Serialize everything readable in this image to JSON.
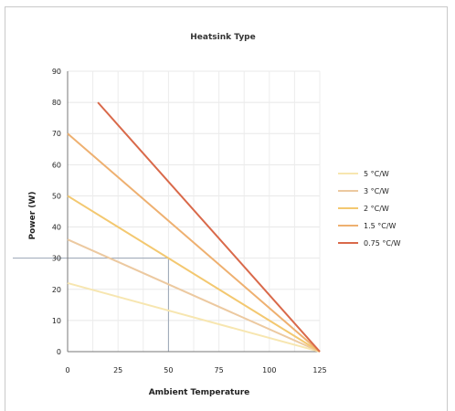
{
  "chart_data": {
    "type": "line",
    "title": "Heatsink Type",
    "xlabel": "Ambient Temperature",
    "ylabel": "Power (W)",
    "xlim": [
      0,
      125
    ],
    "ylim": [
      0,
      90
    ],
    "x_ticks": [
      0,
      25,
      50,
      75,
      100,
      125
    ],
    "y_ticks": [
      0,
      10,
      20,
      30,
      40,
      50,
      60,
      70,
      80,
      90
    ],
    "grid": true,
    "legend_position": "right",
    "reference_point": {
      "x": 50,
      "y": 30
    },
    "series": [
      {
        "name": "5 °C/W",
        "color": "#f7e6b0",
        "x": [
          0,
          125
        ],
        "y": [
          22,
          0
        ]
      },
      {
        "name": "3 °C/W",
        "color": "#ecc9a0",
        "x": [
          0,
          125
        ],
        "y": [
          36,
          0
        ]
      },
      {
        "name": "2 °C/W",
        "color": "#f3c870",
        "x": [
          0,
          125
        ],
        "y": [
          50,
          0
        ]
      },
      {
        "name": "1.5 °C/W",
        "color": "#eeb070",
        "x": [
          0,
          125
        ],
        "y": [
          70,
          0
        ]
      },
      {
        "name": "0.75 °C/W",
        "color": "#d9694a",
        "x": [
          15,
          125
        ],
        "y": [
          80,
          0
        ]
      }
    ]
  }
}
